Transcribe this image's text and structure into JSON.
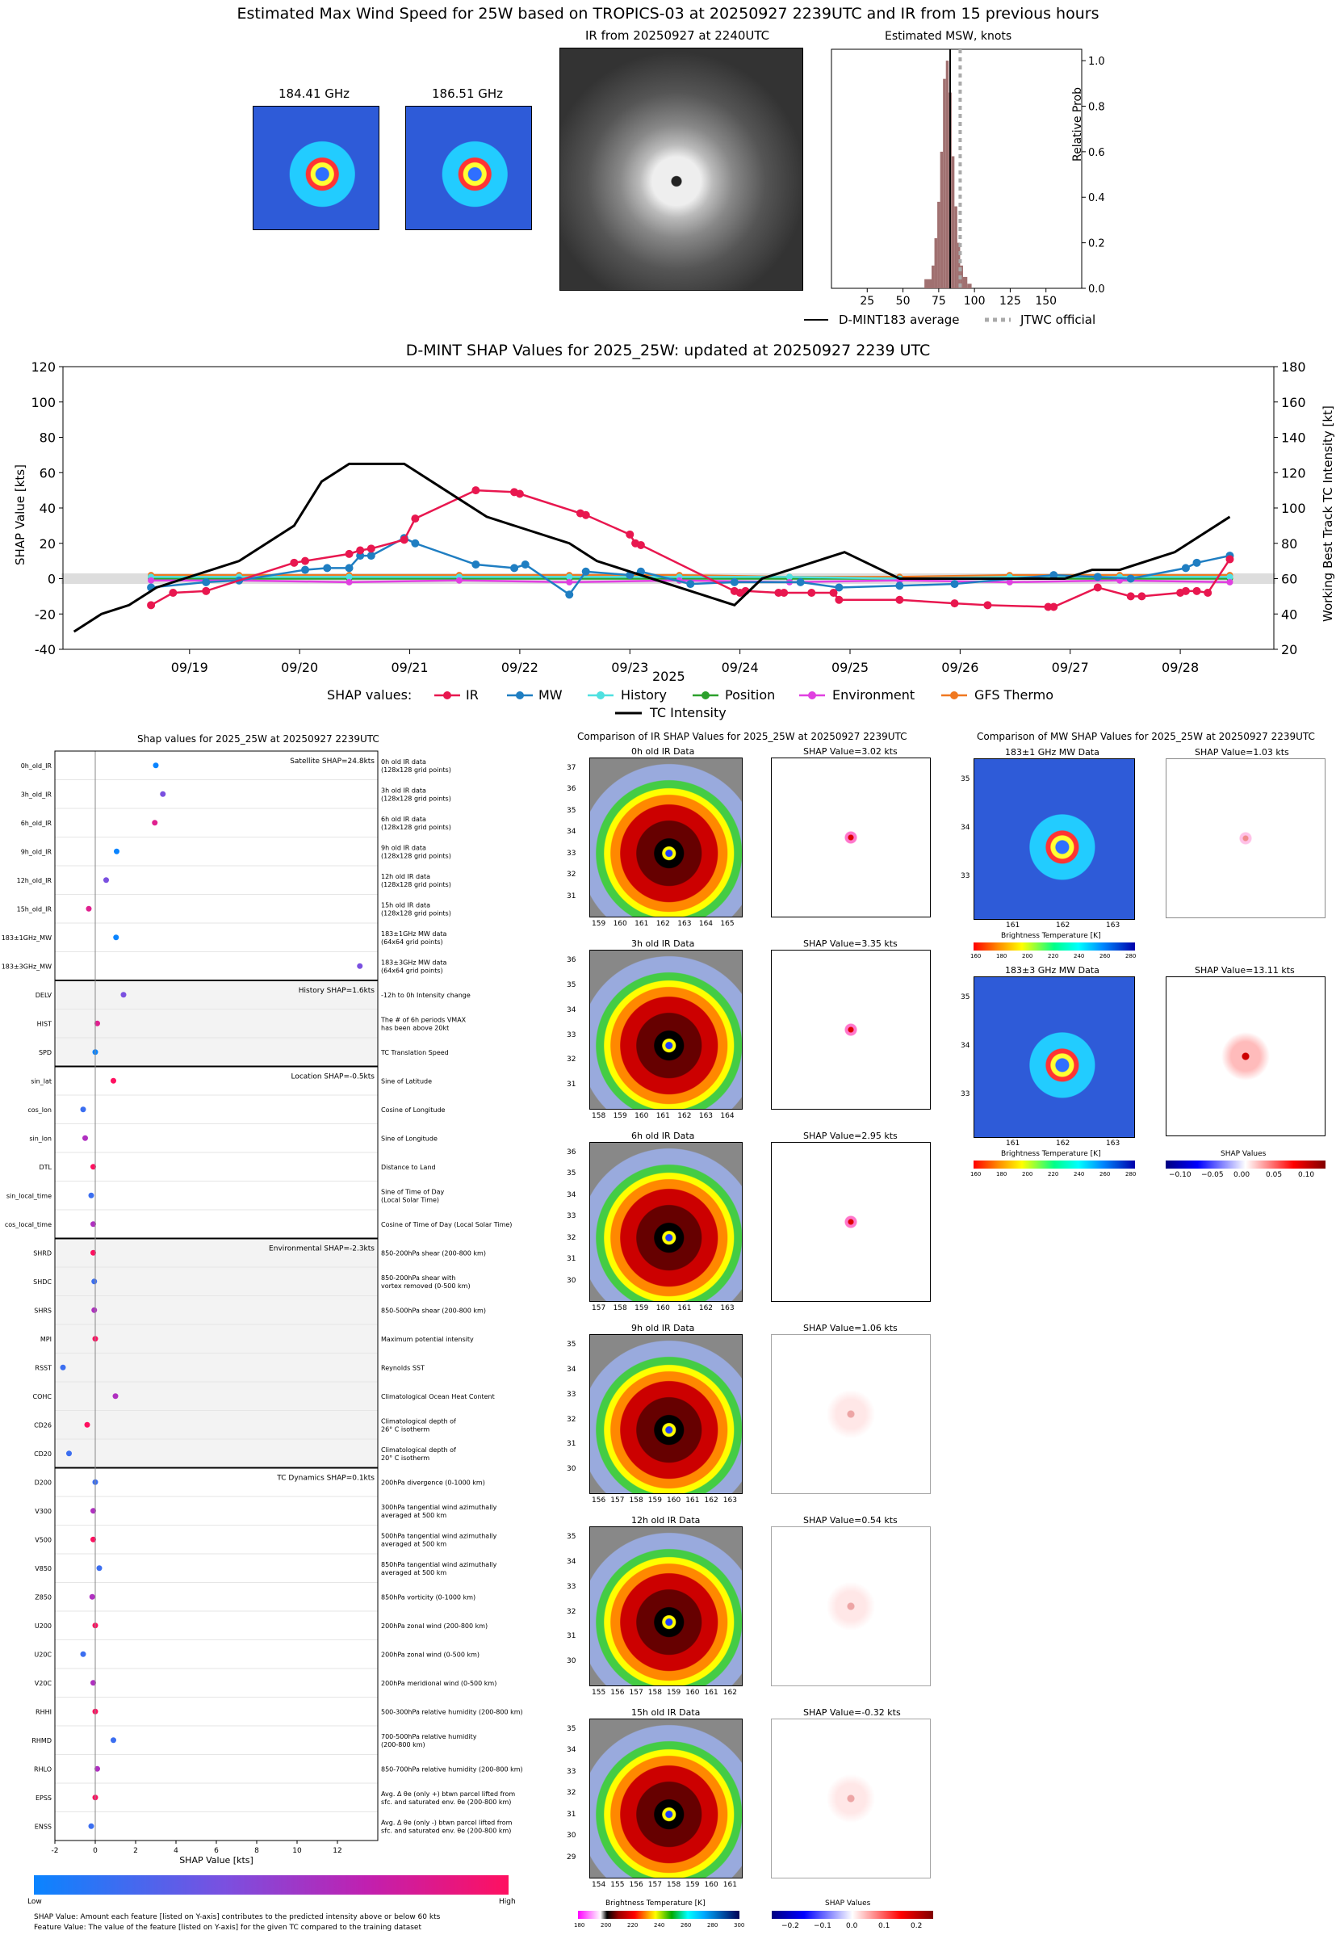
{
  "main_title": "Estimated Max Wind Speed for 25W based on TROPICS-03 at 20250927 2239UTC and IR from 15 previous hours",
  "top": {
    "mw1_title": "184.41 GHz",
    "mw2_title": "186.51 GHz",
    "ir_title": "IR from 20250927 at 2240UTC",
    "hist_title": "Estimated MSW, knots",
    "hist_ylabel": "Relative Prob",
    "hist_xticks": [
      "25",
      "50",
      "75",
      "100",
      "125",
      "150"
    ],
    "hist_yticks": [
      "0.0",
      "0.2",
      "0.4",
      "0.6",
      "0.8",
      "1.0"
    ],
    "legend_avg": "D-MINT183 average",
    "legend_jtwc": "JTWC official"
  },
  "colors": {
    "ir": "#e8174f",
    "mw": "#1f7ec2",
    "history": "#4fe0e0",
    "position": "#2ca02c",
    "environment": "#e040e0",
    "gfs": "#f07820",
    "intensity": "#000000",
    "hist_bar": "#a07070"
  },
  "chart_data": [
    {
      "type": "bar",
      "title": "Estimated MSW, knots",
      "ylabel": "Relative Prob",
      "xlim": [
        0,
        175
      ],
      "ylim": [
        0,
        1.05
      ],
      "bins": [
        65,
        70,
        72,
        74,
        76,
        78,
        80,
        82,
        84,
        86,
        88,
        90,
        92,
        95
      ],
      "values": [
        0.04,
        0.1,
        0.22,
        0.38,
        0.6,
        0.92,
        1.0,
        0.86,
        0.58,
        0.36,
        0.2,
        0.1,
        0.05,
        0.02
      ],
      "dmint_average": 83,
      "jtwc_official": 90
    },
    {
      "type": "line",
      "title": "D-MINT SHAP Values for 2025_25W: updated at 20250927 2239 UTC",
      "xlabel": "2025",
      "ylabel": "SHAP Value [kts]",
      "y2label": "Working Best Track TC Intensity [kt]",
      "xticks": [
        "09/19",
        "09/20",
        "09/21",
        "09/22",
        "09/23",
        "09/24",
        "09/25",
        "09/26",
        "09/27",
        "09/28"
      ],
      "yticks": [
        "-40",
        "-20",
        "0",
        "20",
        "40",
        "60",
        "80",
        "100",
        "120"
      ],
      "y2ticks": [
        "20",
        "40",
        "60",
        "80",
        "100",
        "120",
        "140",
        "160",
        "180"
      ],
      "ylim": [
        -40,
        120
      ],
      "y2lim": [
        20,
        180
      ],
      "legend_label": "SHAP values:",
      "series": [
        {
          "name": "IR",
          "x": [
            0.2,
            0.4,
            0.7,
            1.5,
            1.6,
            2.0,
            2.1,
            2.2,
            2.5,
            2.6,
            3.15,
            3.5,
            3.55,
            4.1,
            4.15,
            4.55,
            4.6,
            4.65,
            5.5,
            5.55,
            5.6,
            5.9,
            5.95,
            6.2,
            6.4,
            6.45,
            7.0,
            7.5,
            7.8,
            8.35,
            8.4,
            8.8,
            9.1,
            9.2,
            9.55,
            9.6,
            9.7,
            9.8,
            10.0
          ],
          "y": [
            -15,
            -8,
            -7,
            9,
            10,
            14,
            16,
            17,
            22,
            34,
            50,
            49,
            48,
            37,
            36,
            25,
            20,
            19,
            -7,
            -8,
            -7,
            -8,
            -8,
            -8,
            -8,
            -12,
            -12,
            -14,
            -15,
            -16,
            -16,
            -5,
            -10,
            -10,
            -8,
            -7,
            -7,
            -8,
            11
          ]
        },
        {
          "name": "MW",
          "x": [
            0.2,
            0.7,
            1.0,
            1.6,
            1.8,
            2.0,
            2.1,
            2.2,
            2.5,
            2.6,
            3.15,
            3.5,
            3.6,
            4.0,
            4.15,
            4.55,
            4.65,
            5.1,
            5.5,
            6.1,
            6.45,
            7.0,
            7.5,
            8.4,
            8.8,
            9.1,
            9.6,
            9.7,
            10.0
          ],
          "y": [
            -5,
            -2,
            -1,
            5,
            6,
            6,
            13,
            13,
            23,
            20,
            8,
            6,
            8,
            -9,
            4,
            2,
            4,
            -3,
            -2,
            -2,
            -5,
            -4,
            -3,
            2,
            1,
            0,
            6,
            9,
            13
          ]
        },
        {
          "name": "History",
          "x": [
            0.2,
            1.0,
            2.0,
            3.0,
            4.0,
            5.0,
            6.0,
            7.0,
            8.0,
            9.0,
            10.0
          ],
          "y": [
            1,
            1,
            1,
            1,
            1,
            1,
            1,
            0,
            1,
            1,
            1
          ]
        },
        {
          "name": "Position",
          "x": [
            0.2,
            1.0,
            2.0,
            3.0,
            4.0,
            5.0,
            6.0,
            7.0,
            8.0,
            9.0,
            10.0
          ],
          "y": [
            0,
            0,
            0,
            0,
            0,
            0,
            0,
            0,
            0,
            0,
            0
          ]
        },
        {
          "name": "Environment",
          "x": [
            0.2,
            1.0,
            2.0,
            3.0,
            4.0,
            5.0,
            6.0,
            7.0,
            8.0,
            9.0,
            10.0
          ],
          "y": [
            -1,
            -1,
            -2,
            -1,
            -2,
            -1,
            -2,
            -1,
            -2,
            -1,
            -2
          ]
        },
        {
          "name": "GFS Thermo",
          "x": [
            0.2,
            1.0,
            2.0,
            3.0,
            4.0,
            5.0,
            6.0,
            7.0,
            8.0,
            9.0,
            10.0
          ],
          "y": [
            2,
            2,
            2,
            2,
            2,
            2,
            1,
            1,
            2,
            2,
            2
          ]
        },
        {
          "name": "TC Intensity",
          "x": [
            -0.5,
            -0.25,
            0.0,
            0.25,
            0.5,
            1.0,
            1.5,
            1.75,
            2.0,
            2.5,
            2.75,
            3.0,
            3.25,
            3.5,
            4.0,
            4.25,
            4.5,
            5.0,
            5.5,
            5.75,
            6.0,
            6.5,
            7.0,
            7.5,
            8.0,
            8.5,
            8.75,
            9.0,
            9.5,
            10.0
          ],
          "y": [
            30,
            40,
            45,
            55,
            60,
            70,
            90,
            115,
            125,
            125,
            115,
            105,
            95,
            90,
            80,
            70,
            65,
            55,
            45,
            60,
            65,
            75,
            60,
            60,
            60,
            60,
            65,
            65,
            75,
            95
          ]
        }
      ]
    },
    {
      "type": "scatter",
      "title": "Shap values for 2025_25W at 20250927 2239UTC",
      "xlabel": "SHAP Value [kts]",
      "xticks": [
        "-2",
        "0",
        "2",
        "4",
        "6",
        "8",
        "10",
        "12"
      ],
      "xlim": [
        -2,
        14
      ],
      "colorbar_low": "Low",
      "colorbar_high": "High",
      "groups": [
        {
          "label": "Satellite SHAP=24.8kts",
          "features": [
            {
              "name": "0h_old_IR",
              "value": 3.0,
              "desc1": "0h old IR data",
              "desc2": "(128x128 grid points)"
            },
            {
              "name": "3h_old_IR",
              "value": 3.35,
              "desc1": "3h old IR data",
              "desc2": "(128x128 grid points)"
            },
            {
              "name": "6h_old_IR",
              "value": 2.95,
              "desc1": "6h old IR data",
              "desc2": "(128x128 grid points)"
            },
            {
              "name": "9h_old_IR",
              "value": 1.06,
              "desc1": "9h old IR data",
              "desc2": "(128x128 grid points)"
            },
            {
              "name": "12h_old_IR",
              "value": 0.54,
              "desc1": "12h old IR data",
              "desc2": "(128x128 grid points)"
            },
            {
              "name": "15h_old_IR",
              "value": -0.32,
              "desc1": "15h old IR data",
              "desc2": "(128x128 grid points)"
            },
            {
              "name": "183±1GHz_MW",
              "value": 1.03,
              "desc1": "183±1GHz MW data",
              "desc2": "(64x64 grid points)"
            },
            {
              "name": "183±3GHz_MW",
              "value": 13.11,
              "desc1": "183±3GHz MW data",
              "desc2": "(64x64 grid points)"
            }
          ]
        },
        {
          "label": "History SHAP=1.6kts",
          "features": [
            {
              "name": "DELV",
              "value": 1.4,
              "desc1": "-12h to 0h Intensity change",
              "desc2": ""
            },
            {
              "name": "HIST",
              "value": 0.1,
              "desc1": "The # of 6h periods VMAX",
              "desc2": "has been above 20kt"
            },
            {
              "name": "SPD",
              "value": 0.0,
              "desc1": "TC Translation Speed",
              "desc2": ""
            }
          ]
        },
        {
          "label": "Location SHAP=-0.5kts",
          "features": [
            {
              "name": "sin_lat",
              "value": 0.9,
              "desc1": "Sine of Latitude",
              "desc2": ""
            },
            {
              "name": "cos_lon",
              "value": -0.6,
              "desc1": "Cosine of Longitude",
              "desc2": ""
            },
            {
              "name": "sin_lon",
              "value": -0.5,
              "desc1": "Sine of Longitude",
              "desc2": ""
            },
            {
              "name": "DTL",
              "value": -0.1,
              "desc1": "Distance to Land",
              "desc2": ""
            },
            {
              "name": "sin_local_time",
              "value": -0.2,
              "desc1": "Sine of Time of Day",
              "desc2": "(Local Solar Time)"
            },
            {
              "name": "cos_local_time",
              "value": -0.1,
              "desc1": "Cosine of Time of Day (Local Solar Time)",
              "desc2": ""
            }
          ]
        },
        {
          "label": "Environmental SHAP=-2.3kts",
          "features": [
            {
              "name": "SHRD",
              "value": -0.1,
              "desc1": "850-200hPa shear (200-800 km)",
              "desc2": ""
            },
            {
              "name": "SHDC",
              "value": -0.05,
              "desc1": "850-200hPa shear with",
              "desc2": "vortex removed (0-500 km)"
            },
            {
              "name": "SHRS",
              "value": -0.05,
              "desc1": "850-500hPa shear (200-800 km)",
              "desc2": ""
            },
            {
              "name": "MPI",
              "value": 0.0,
              "desc1": "Maximum potential intensity",
              "desc2": ""
            },
            {
              "name": "RSST",
              "value": -1.6,
              "desc1": "Reynolds SST",
              "desc2": ""
            },
            {
              "name": "COHC",
              "value": 1.0,
              "desc1": "Climatological Ocean Heat Content",
              "desc2": ""
            },
            {
              "name": "CD26",
              "value": -0.4,
              "desc1": "Climatological depth of",
              "desc2": "26° C isotherm"
            },
            {
              "name": "CD20",
              "value": -1.3,
              "desc1": "Climatological depth of",
              "desc2": "20° C isotherm"
            }
          ]
        },
        {
          "label": "TC Dynamics SHAP=0.1kts",
          "features": [
            {
              "name": "D200",
              "value": 0.0,
              "desc1": "200hPa divergence (0-1000 km)",
              "desc2": ""
            },
            {
              "name": "V300",
              "value": -0.1,
              "desc1": "300hPa tangential wind azimuthally",
              "desc2": "averaged at 500 km"
            },
            {
              "name": "V500",
              "value": -0.1,
              "desc1": "500hPa tangential wind azimuthally",
              "desc2": "averaged at 500 km"
            },
            {
              "name": "V850",
              "value": 0.2,
              "desc1": "850hPa tangential wind azimuthally",
              "desc2": "averaged at 500 km"
            },
            {
              "name": "Z850",
              "value": -0.15,
              "desc1": "850hPa vorticity (0-1000 km)",
              "desc2": ""
            },
            {
              "name": "U200",
              "value": 0.0,
              "desc1": "200hPa zonal wind (200-800 km)",
              "desc2": ""
            },
            {
              "name": "U20C",
              "value": -0.6,
              "desc1": "200hPa zonal wind (0-500 km)",
              "desc2": ""
            },
            {
              "name": "V20C",
              "value": -0.1,
              "desc1": "200hPa meridional wind (0-500 km)",
              "desc2": ""
            },
            {
              "name": "RHHI",
              "value": 0.0,
              "desc1": "500-300hPa relative humidity (200-800 km)",
              "desc2": ""
            },
            {
              "name": "RHMD",
              "value": 0.9,
              "desc1": "700-500hPa relative humidity",
              "desc2": "(200-800 km)"
            },
            {
              "name": "RHLO",
              "value": 0.1,
              "desc1": "850-700hPa relative humidity (200-800 km)",
              "desc2": ""
            },
            {
              "name": "EPSS",
              "value": 0.0,
              "desc1": "Avg. Δ θe (only +) btwn parcel lifted from",
              "desc2": "sfc. and saturated env. θe (200-800 km)"
            },
            {
              "name": "ENSS",
              "value": -0.2,
              "desc1": "Avg. Δ θe (only -) btwn parcel lifted from",
              "desc2": "sfc. and saturated env. θe (200-800 km)"
            }
          ]
        }
      ]
    }
  ],
  "legend": {
    "label": "SHAP values:",
    "items": [
      "IR",
      "MW",
      "History",
      "Position",
      "Environment",
      "GFS Thermo"
    ],
    "intensity": "TC Intensity"
  },
  "ir_compare": {
    "title": "Comparison of IR SHAP Values for 2025_25W at 20250927 2239UTC",
    "rows": [
      {
        "img": "0h old IR Data",
        "shap": "SHAP Value=3.02 kts",
        "xticks": [
          "159",
          "160",
          "161",
          "162",
          "163",
          "164",
          "165"
        ],
        "yticks": [
          "37",
          "36",
          "35",
          "34",
          "33",
          "32",
          "31"
        ]
      },
      {
        "img": "3h old IR Data",
        "shap": "SHAP Value=3.35 kts",
        "xticks": [
          "158",
          "159",
          "160",
          "161",
          "162",
          "163",
          "164"
        ],
        "yticks": [
          "36",
          "35",
          "34",
          "33",
          "32",
          "31"
        ]
      },
      {
        "img": "6h old IR Data",
        "shap": "SHAP Value=2.95 kts",
        "xticks": [
          "157",
          "158",
          "159",
          "160",
          "161",
          "162",
          "163"
        ],
        "yticks": [
          "36",
          "35",
          "34",
          "33",
          "32",
          "31",
          "30"
        ]
      },
      {
        "img": "9h old IR Data",
        "shap": "SHAP Value=1.06 kts",
        "xticks": [
          "156",
          "157",
          "158",
          "159",
          "160",
          "161",
          "162",
          "163"
        ],
        "yticks": [
          "35",
          "34",
          "33",
          "32",
          "31",
          "30"
        ]
      },
      {
        "img": "12h old IR Data",
        "shap": "SHAP Value=0.54 kts",
        "xticks": [
          "155",
          "156",
          "157",
          "158",
          "159",
          "160",
          "161",
          "162"
        ],
        "yticks": [
          "35",
          "34",
          "33",
          "32",
          "31",
          "30"
        ]
      },
      {
        "img": "15h old IR Data",
        "shap": "SHAP Value=-0.32 kts",
        "xticks": [
          "154",
          "155",
          "156",
          "157",
          "158",
          "159",
          "160",
          "161"
        ],
        "yticks": [
          "35",
          "34",
          "33",
          "32",
          "31",
          "30",
          "29"
        ]
      }
    ],
    "cbar_label": "Brightness Temperature [K]",
    "cbar_ticks": [
      "180",
      "200",
      "220",
      "240",
      "260",
      "280",
      "300"
    ],
    "shap_cbar_label": "SHAP Values",
    "shap_cbar_ticks": [
      "−0.2",
      "−0.1",
      "0.0",
      "0.1",
      "0.2"
    ]
  },
  "mw_compare": {
    "title": "Comparison of MW SHAP Values for 2025_25W at 20250927 2239UTC",
    "rows": [
      {
        "img": "183±1 GHz MW Data",
        "shap": "SHAP Value=1.03 kts",
        "xticks": [
          "161",
          "162",
          "163"
        ],
        "yticks": [
          "35",
          "34",
          "33"
        ]
      },
      {
        "img": "183±3 GHz MW Data",
        "shap": "SHAP Value=13.11 kts",
        "xticks": [
          "161",
          "162",
          "163"
        ],
        "yticks": [
          "35",
          "34",
          "33"
        ]
      }
    ],
    "cbar_label": "Brightness Temperature [K]",
    "cbar_ticks": [
      "160",
      "180",
      "200",
      "220",
      "240",
      "260",
      "280"
    ],
    "shap_cbar_label": "SHAP Values",
    "shap_cbar_ticks": [
      "−0.10",
      "−0.05",
      "0.00",
      "0.05",
      "0.10"
    ]
  },
  "footnote1": "SHAP Value: Amount each feature [listed on Y-axis] contributes to the predicted intensity above or below 60 kts",
  "footnote2": "Feature Value: The value of the feature [listed on Y-axis] for the given TC compared to the training dataset"
}
